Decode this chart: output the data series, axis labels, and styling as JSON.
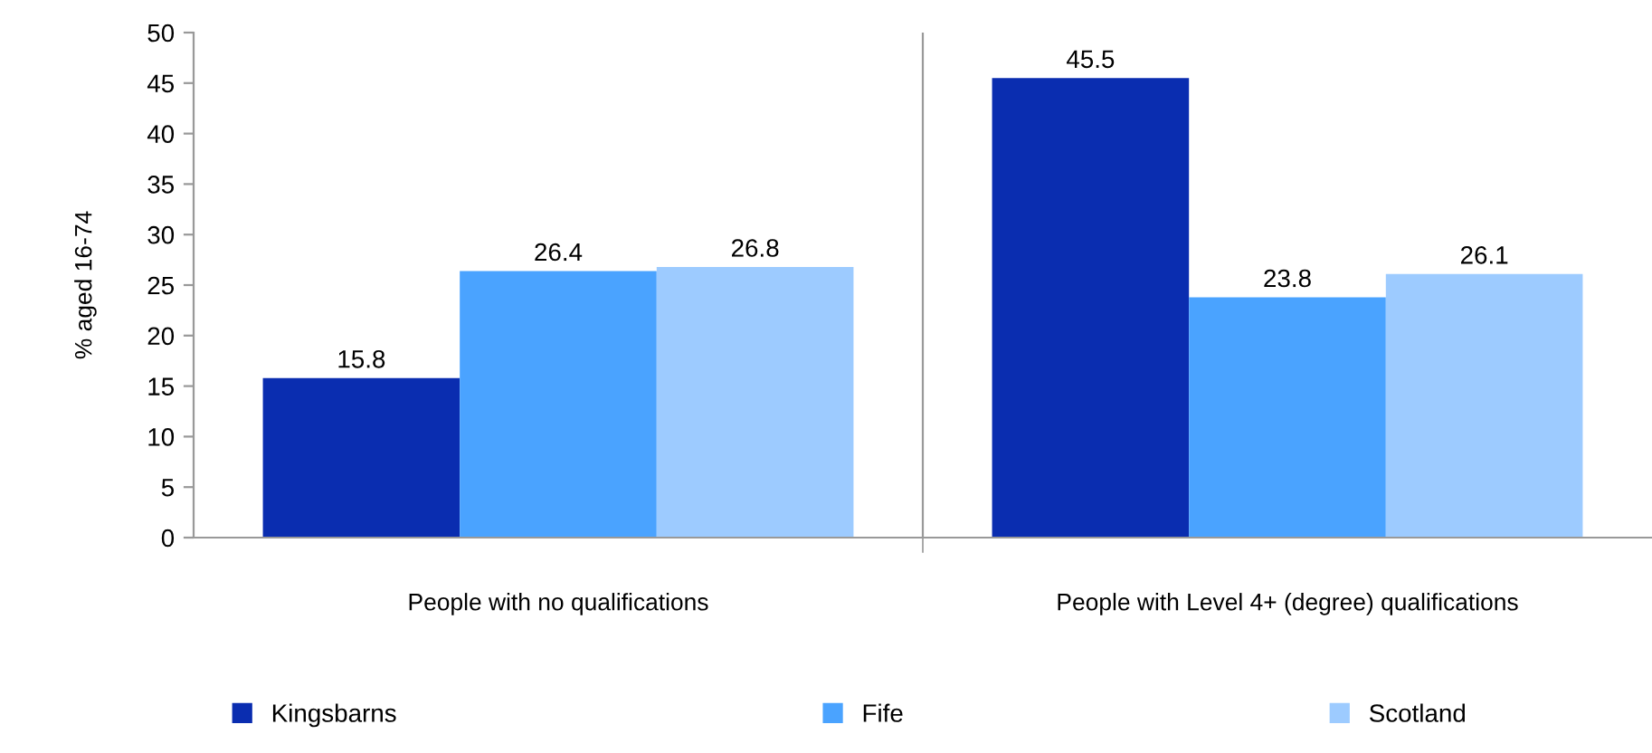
{
  "chart_data": {
    "type": "bar",
    "ylabel": "% aged 16-74",
    "categories": [
      "People with no qualifications",
      "People with Level 4+ (degree) qualifications"
    ],
    "series": [
      {
        "name": "Kingsbarns",
        "color": "#0a2db0",
        "values": [
          15.8,
          45.5
        ]
      },
      {
        "name": "Fife",
        "color": "#4aa3ff",
        "values": [
          26.4,
          23.8
        ]
      },
      {
        "name": "Scotland",
        "color": "#9dcbff",
        "values": [
          26.8,
          26.1
        ]
      }
    ],
    "ylim": [
      0,
      50
    ],
    "yticks": [
      0,
      5,
      10,
      15,
      20,
      25,
      30,
      35,
      40,
      45,
      50
    ],
    "data_labels": true,
    "legend": "bottom"
  }
}
